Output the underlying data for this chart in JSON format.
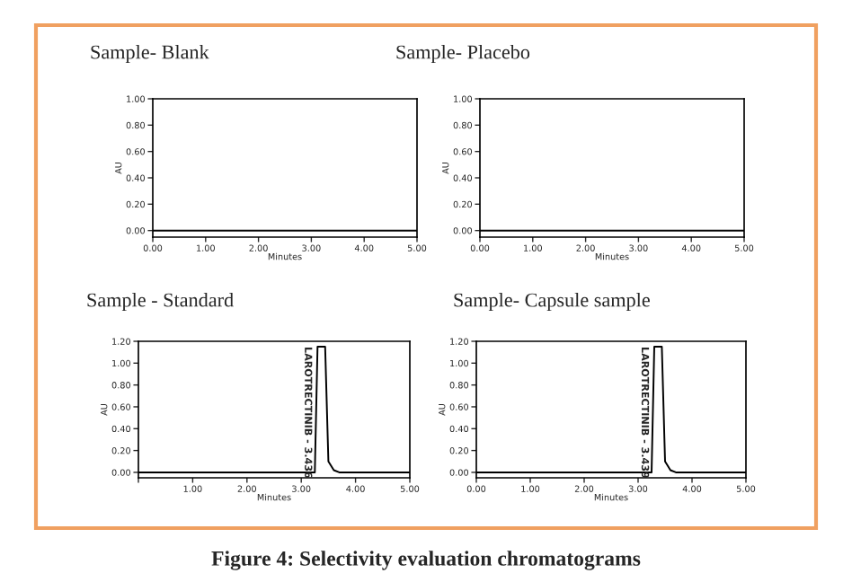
{
  "chart_data": [
    {
      "type": "line",
      "title": "Sample- Blank",
      "xlabel": "Minutes",
      "ylabel": "AU",
      "xlim": [
        0,
        5
      ],
      "ylim": [
        -0.05,
        1.0
      ],
      "xticks": [
        {
          "value": 0,
          "label": "0.00"
        },
        {
          "value": 1,
          "label": "1.00"
        },
        {
          "value": 2,
          "label": "2.00"
        },
        {
          "value": 3,
          "label": "3.00"
        },
        {
          "value": 4,
          "label": "4.00"
        },
        {
          "value": 5,
          "label": "5.00"
        }
      ],
      "yticks": [
        {
          "value": 0,
          "label": "0.00"
        },
        {
          "value": 0.2,
          "label": "0.20"
        },
        {
          "value": 0.4,
          "label": "0.40"
        },
        {
          "value": 0.6,
          "label": "0.60"
        },
        {
          "value": 0.8,
          "label": "0.80"
        },
        {
          "value": 1,
          "label": "1.00"
        }
      ],
      "series": [
        {
          "color": "#000000",
          "x": [
            0,
            5
          ],
          "values": [
            0,
            0
          ]
        }
      ],
      "grid": false
    },
    {
      "type": "line",
      "title": "Sample- Placebo",
      "xlabel": "Minutes",
      "ylabel": "AU",
      "xlim": [
        0,
        5
      ],
      "ylim": [
        -0.05,
        1.0
      ],
      "xticks": [
        {
          "value": 0,
          "label": "0.00"
        },
        {
          "value": 1,
          "label": "1.00"
        },
        {
          "value": 2,
          "label": "2.00"
        },
        {
          "value": 3,
          "label": "3.00"
        },
        {
          "value": 4,
          "label": "4.00"
        },
        {
          "value": 5,
          "label": "5.00"
        }
      ],
      "yticks": [
        {
          "value": 0,
          "label": "0.00"
        },
        {
          "value": 0.2,
          "label": "0.20"
        },
        {
          "value": 0.4,
          "label": "0.40"
        },
        {
          "value": 0.6,
          "label": "0.60"
        },
        {
          "value": 0.8,
          "label": "0.80"
        },
        {
          "value": 1,
          "label": "1.00"
        }
      ],
      "series": [
        {
          "color": "#000000",
          "x": [
            0,
            5
          ],
          "values": [
            0,
            0
          ]
        }
      ],
      "grid": false
    },
    {
      "type": "line",
      "title": "Sample - Standard",
      "xlabel": "Minutes",
      "ylabel": "AU",
      "xlim": [
        0,
        5
      ],
      "ylim": [
        -0.05,
        1.2
      ],
      "xticks": [
        {
          "value": 0,
          "label": null
        },
        {
          "value": 1,
          "label": "1.00"
        },
        {
          "value": 2,
          "label": "2.00"
        },
        {
          "value": 3,
          "label": "3.00"
        },
        {
          "value": 4,
          "label": "4.00"
        },
        {
          "value": 5,
          "label": "5.00"
        }
      ],
      "yticks": [
        {
          "value": 0,
          "label": "0.00"
        },
        {
          "value": 0.2,
          "label": "0.20"
        },
        {
          "value": 0.4,
          "label": "0.40"
        },
        {
          "value": 0.6,
          "label": "0.60"
        },
        {
          "value": 0.8,
          "label": "0.80"
        },
        {
          "value": 1,
          "label": "1.00"
        },
        {
          "value": 1.2,
          "label": "1.20"
        }
      ],
      "series": [
        {
          "color": "#000000",
          "x": [
            0,
            3.25,
            3.3,
            3.44,
            3.5,
            3.6,
            3.7,
            5
          ],
          "values": [
            0,
            0,
            1.15,
            1.15,
            0.1,
            0.02,
            0,
            0
          ]
        }
      ],
      "grid": false,
      "annotations": [
        {
          "text": "LAROTRECTINIB - 3.436",
          "x": 3.436,
          "y": 1.15
        }
      ]
    },
    {
      "type": "line",
      "title": "Sample- Capsule sample",
      "xlabel": "Minutes",
      "ylabel": "AU",
      "xlim": [
        0,
        5
      ],
      "ylim": [
        -0.05,
        1.2
      ],
      "xticks": [
        {
          "value": 0,
          "label": "0.00"
        },
        {
          "value": 1,
          "label": "1.00"
        },
        {
          "value": 2,
          "label": "2.00"
        },
        {
          "value": 3,
          "label": "3.00"
        },
        {
          "value": 4,
          "label": "4.00"
        },
        {
          "value": 5,
          "label": "5.00"
        }
      ],
      "yticks": [
        {
          "value": 0,
          "label": "0.00"
        },
        {
          "value": 0.2,
          "label": "0.20"
        },
        {
          "value": 0.4,
          "label": "0.40"
        },
        {
          "value": 0.6,
          "label": "0.60"
        },
        {
          "value": 0.8,
          "label": "0.80"
        },
        {
          "value": 1,
          "label": "1.00"
        },
        {
          "value": 1.2,
          "label": "1.20"
        }
      ],
      "series": [
        {
          "color": "#000000",
          "x": [
            0,
            3.25,
            3.3,
            3.44,
            3.5,
            3.6,
            3.7,
            5
          ],
          "values": [
            0,
            0,
            1.15,
            1.15,
            0.1,
            0.02,
            0,
            0
          ]
        }
      ],
      "grid": false,
      "annotations": [
        {
          "text": "LAROTRECTINIB - 3.439",
          "x": 3.439,
          "y": 1.15
        },
        "Figure 4: Selectivity evaluation chromatograms"
      ]
    }
  ]
}
